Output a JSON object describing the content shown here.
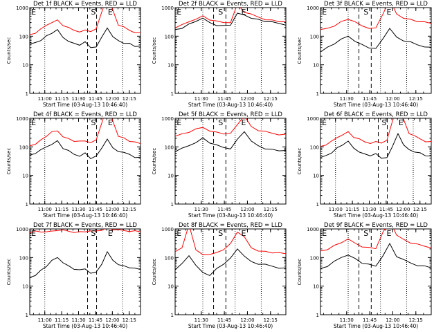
{
  "chart_data": [
    {
      "type": "line",
      "title": "Det 1f BLACK = Events, RED = LLD",
      "xlabel": "Start Time (03-Aug-13 10:46:40)",
      "ylabel": "Counts/sec",
      "x_ticks": [
        "11:00",
        "11:15",
        "11:30",
        "11:45",
        "12:00",
        "12:15"
      ],
      "y_ticks": [
        "1",
        "10",
        "100",
        "1000"
      ],
      "y_scale": "log",
      "ylim": [
        1,
        1000
      ],
      "xlim": [
        "10:46:40",
        "12:25"
      ],
      "markers": [
        "E",
        "S",
        "E"
      ],
      "marker_times": [
        "10:48",
        "11:41",
        "11:56"
      ],
      "dotted_lines": [
        "11:00",
        "12:09"
      ],
      "dashed_lines": [
        "11:38",
        "11:46"
      ],
      "series": [
        {
          "name": "Events",
          "color": "#000000",
          "values": [
            50,
            60,
            75,
            100,
            130,
            160,
            90,
            70,
            55,
            50,
            60,
            40,
            45,
            90,
            200,
            90,
            70,
            60,
            55,
            45,
            42
          ]
        },
        {
          "name": "LLD",
          "color": "#ff0000",
          "values": [
            110,
            130,
            170,
            240,
            320,
            360,
            240,
            190,
            160,
            150,
            160,
            150,
            170,
            700,
            2500,
            800,
            250,
            200,
            160,
            140,
            130
          ]
        }
      ]
    },
    {
      "type": "line",
      "title": "Det 2f BLACK = Events, RED = LLD",
      "xlabel": "Start Time (03-Aug-13 10:46:40)",
      "ylabel": "Counts/sec",
      "x_ticks": [
        "11:30",
        "11:45",
        "12:00",
        "12:15"
      ],
      "y_ticks": [
        "1",
        "10",
        "100",
        "1000"
      ],
      "y_scale": "log",
      "ylim": [
        1,
        1000
      ],
      "xlim": [
        "11:13",
        "12:25"
      ],
      "markers": [
        "E",
        "S",
        "E"
      ],
      "marker_times": [
        "11:14",
        "11:41",
        "11:56"
      ],
      "dotted_lines": [
        "11:31",
        "11:52",
        "12:09"
      ],
      "dashed_lines": [
        "11:38",
        "11:46"
      ],
      "series": [
        {
          "name": "Events",
          "color": "#000000",
          "values": [
            170,
            200,
            260,
            340,
            400,
            300,
            250,
            230,
            250,
            600,
            550,
            450,
            380,
            330,
            300,
            280,
            260
          ]
        },
        {
          "name": "LLD",
          "color": "#ff0000",
          "values": [
            200,
            240,
            320,
            420,
            500,
            380,
            320,
            300,
            320,
            1300,
            700,
            560,
            470,
            400,
            360,
            330,
            300
          ]
        }
      ]
    },
    {
      "type": "line",
      "title": "Det 3f BLACK = Events, RED = LLD",
      "xlabel": "Start Time (03-Aug-13 10:46:40)",
      "ylabel": "Counts/sec",
      "x_ticks": [
        "11:30",
        "11:45",
        "12:00",
        "12:15"
      ],
      "y_ticks": [
        "1",
        "10",
        "100",
        "1000"
      ],
      "y_scale": "log",
      "ylim": [
        1,
        1000
      ],
      "xlim": [
        "11:13",
        "12:25"
      ],
      "markers": [
        "E",
        "S",
        "E"
      ],
      "marker_times": [
        "11:14",
        "11:41",
        "11:56"
      ],
      "dotted_lines": [
        "11:31",
        "11:52",
        "12:09"
      ],
      "dashed_lines": [
        "11:38",
        "11:46"
      ],
      "series": [
        {
          "name": "Events",
          "color": "#000000",
          "values": [
            30,
            40,
            55,
            75,
            100,
            70,
            50,
            40,
            35,
            80,
            200,
            90,
            70,
            60,
            50,
            45,
            40
          ]
        },
        {
          "name": "LLD",
          "color": "#ff0000",
          "values": [
            160,
            190,
            240,
            320,
            400,
            300,
            230,
            200,
            190,
            600,
            1800,
            600,
            450,
            380,
            330,
            300,
            280
          ]
        }
      ]
    },
    {
      "type": "line",
      "title": "Det 4f BLACK = Events, RED = LLD",
      "xlabel": "Start Time (03-Aug-13 10:46:40)",
      "ylabel": "Counts/sec",
      "x_ticks": [
        "11:00",
        "11:15",
        "11:30",
        "11:45",
        "12:00",
        "12:15"
      ],
      "y_ticks": [
        "1",
        "10",
        "100",
        "1000"
      ],
      "y_scale": "log",
      "ylim": [
        1,
        1000
      ],
      "xlim": [
        "10:46:40",
        "12:25"
      ],
      "markers": [
        "E",
        "S",
        "E"
      ],
      "marker_times": [
        "10:48",
        "11:41",
        "11:56"
      ],
      "dotted_lines": [
        "11:00",
        "12:09"
      ],
      "dashed_lines": [
        "11:38",
        "11:46"
      ],
      "series": [
        {
          "name": "Events",
          "color": "#000000",
          "values": [
            50,
            60,
            75,
            100,
            130,
            160,
            90,
            70,
            55,
            50,
            60,
            40,
            45,
            90,
            200,
            90,
            70,
            60,
            55,
            45,
            42
          ]
        },
        {
          "name": "LLD",
          "color": "#ff0000",
          "values": [
            110,
            130,
            170,
            240,
            320,
            360,
            240,
            190,
            160,
            150,
            160,
            150,
            170,
            700,
            2500,
            800,
            250,
            200,
            160,
            140,
            130
          ]
        }
      ]
    },
    {
      "type": "line",
      "title": "Det 5f BLACK = Events, RED = LLD",
      "xlabel": "Start Time (03-Aug-13 10:46:40)",
      "ylabel": "Counts/sec",
      "x_ticks": [
        "11:30",
        "11:45",
        "12:00",
        "12:15"
      ],
      "y_ticks": [
        "1",
        "10",
        "100",
        "1000"
      ],
      "y_scale": "log",
      "ylim": [
        1,
        1000
      ],
      "xlim": [
        "11:13",
        "12:25"
      ],
      "markers": [
        "E",
        "S",
        "E"
      ],
      "marker_times": [
        "11:14",
        "11:41",
        "11:56"
      ],
      "dotted_lines": [
        "11:31",
        "11:52",
        "12:09"
      ],
      "dashed_lines": [
        "11:38",
        "11:46"
      ],
      "series": [
        {
          "name": "Events",
          "color": "#000000",
          "values": [
            70,
            85,
            110,
            150,
            200,
            140,
            110,
            95,
            90,
            180,
            350,
            150,
            110,
            90,
            80,
            75,
            70
          ]
        },
        {
          "name": "LLD",
          "color": "#ff0000",
          "values": [
            250,
            280,
            330,
            400,
            480,
            380,
            320,
            290,
            280,
            600,
            1300,
            500,
            380,
            330,
            300,
            280,
            270
          ]
        }
      ]
    },
    {
      "type": "line",
      "title": "Det 6f BLACK = Events, RED = LLD",
      "xlabel": "Start Time (03-Aug-13 10:46:40)",
      "ylabel": "Counts/sec",
      "x_ticks": [
        "11:00",
        "11:15",
        "11:30",
        "11:45",
        "12:00",
        "12:15"
      ],
      "y_ticks": [
        "1",
        "10",
        "100",
        "1000"
      ],
      "y_scale": "log",
      "ylim": [
        1,
        1000
      ],
      "xlim": [
        "10:46:40",
        "12:25"
      ],
      "markers": [
        "E",
        "S",
        "E"
      ],
      "marker_times": [
        "10:48",
        "11:41",
        "11:56"
      ],
      "dotted_lines": [
        "11:00",
        "12:09"
      ],
      "dashed_lines": [
        "11:38",
        "11:46"
      ],
      "series": [
        {
          "name": "Events",
          "color": "#000000",
          "values": [
            40,
            50,
            65,
            90,
            120,
            150,
            90,
            70,
            55,
            50,
            55,
            40,
            45,
            100,
            300,
            110,
            80,
            70,
            60,
            50,
            45
          ]
        },
        {
          "name": "LLD",
          "color": "#ff0000",
          "values": [
            100,
            120,
            150,
            210,
            280,
            330,
            220,
            180,
            150,
            140,
            150,
            140,
            160,
            800,
            2800,
            900,
            300,
            230,
            190,
            160,
            150
          ]
        }
      ]
    },
    {
      "type": "line",
      "title": "Det 7f BLACK = Events, RED = LLD",
      "xlabel": "Start Time (03-Aug-13 10:46:40)",
      "ylabel": "Counts/sec",
      "x_ticks": [
        "11:00",
        "11:15",
        "11:30",
        "11:45",
        "12:00",
        "12:15"
      ],
      "y_ticks": [
        "1",
        "10",
        "100",
        "1000"
      ],
      "y_scale": "log",
      "ylim": [
        1,
        1000
      ],
      "xlim": [
        "10:46:40",
        "12:25"
      ],
      "markers": [
        "E",
        "S",
        "E"
      ],
      "marker_times": [
        "10:48",
        "11:41",
        "11:56"
      ],
      "dotted_lines": [
        "11:00",
        "12:09"
      ],
      "dashed_lines": [
        "11:38",
        "11:46"
      ],
      "series": [
        {
          "name": "Events",
          "color": "#000000",
          "values": [
            20,
            25,
            35,
            50,
            75,
            100,
            70,
            50,
            40,
            35,
            40,
            30,
            30,
            60,
            150,
            80,
            60,
            50,
            45,
            40,
            38
          ]
        },
        {
          "name": "LLD",
          "color": "#ff0000",
          "values": [
            750,
            800,
            780,
            850,
            820,
            900,
            870,
            830,
            800,
            780,
            820,
            800,
            850,
            950,
            1100,
            950,
            900,
            880,
            860,
            840,
            820
          ]
        }
      ]
    },
    {
      "type": "line",
      "title": "Det 8f BLACK = Events, RED = LLD",
      "xlabel": "Start Time (03-Aug-13 10:46:40)",
      "ylabel": "Counts/sec",
      "x_ticks": [
        "11:30",
        "11:45",
        "12:00",
        "12:15"
      ],
      "y_ticks": [
        "1",
        "10",
        "100",
        "1000"
      ],
      "y_scale": "log",
      "ylim": [
        1,
        1000
      ],
      "xlim": [
        "11:13",
        "12:25"
      ],
      "markers": [
        "E",
        "S",
        "E"
      ],
      "marker_times": [
        "11:14",
        "11:41",
        "11:56"
      ],
      "dotted_lines": [
        "11:31",
        "11:52",
        "12:09"
      ],
      "dashed_lines": [
        "11:38",
        "11:46"
      ],
      "series": [
        {
          "name": "Events",
          "color": "#000000",
          "values": [
            40,
            60,
            120,
            50,
            30,
            25,
            40,
            60,
            90,
            200,
            120,
            70,
            60,
            55,
            50,
            45,
            42
          ]
        },
        {
          "name": "LLD",
          "color": "#ff0000",
          "values": [
            150,
            220,
            1500,
            180,
            130,
            120,
            150,
            200,
            300,
            800,
            500,
            220,
            180,
            160,
            150,
            140,
            135
          ]
        }
      ]
    },
    {
      "type": "line",
      "title": "Det 9f BLACK = Events, RED = LLD",
      "xlabel": "Start Time (03-Aug-13 10:46:40)",
      "ylabel": "Counts/sec",
      "x_ticks": [
        "11:30",
        "11:45",
        "12:00",
        "12:15"
      ],
      "y_ticks": [
        "1",
        "10",
        "100",
        "1000"
      ],
      "y_scale": "log",
      "ylim": [
        1,
        1000
      ],
      "xlim": [
        "11:13",
        "12:25"
      ],
      "markers": [
        "E",
        "S",
        "E"
      ],
      "marker_times": [
        "11:14",
        "11:41",
        "11:56"
      ],
      "dotted_lines": [
        "11:31",
        "11:52",
        "12:09"
      ],
      "dashed_lines": [
        "11:38",
        "11:46"
      ],
      "series": [
        {
          "name": "Events",
          "color": "#000000",
          "values": [
            40,
            50,
            70,
            100,
            130,
            90,
            65,
            55,
            50,
            120,
            300,
            110,
            80,
            65,
            55,
            50,
            45
          ]
        },
        {
          "name": "LLD",
          "color": "#ff0000",
          "values": [
            170,
            200,
            260,
            340,
            420,
            320,
            250,
            220,
            210,
            700,
            2000,
            650,
            420,
            330,
            280,
            250,
            230
          ]
        }
      ]
    }
  ]
}
